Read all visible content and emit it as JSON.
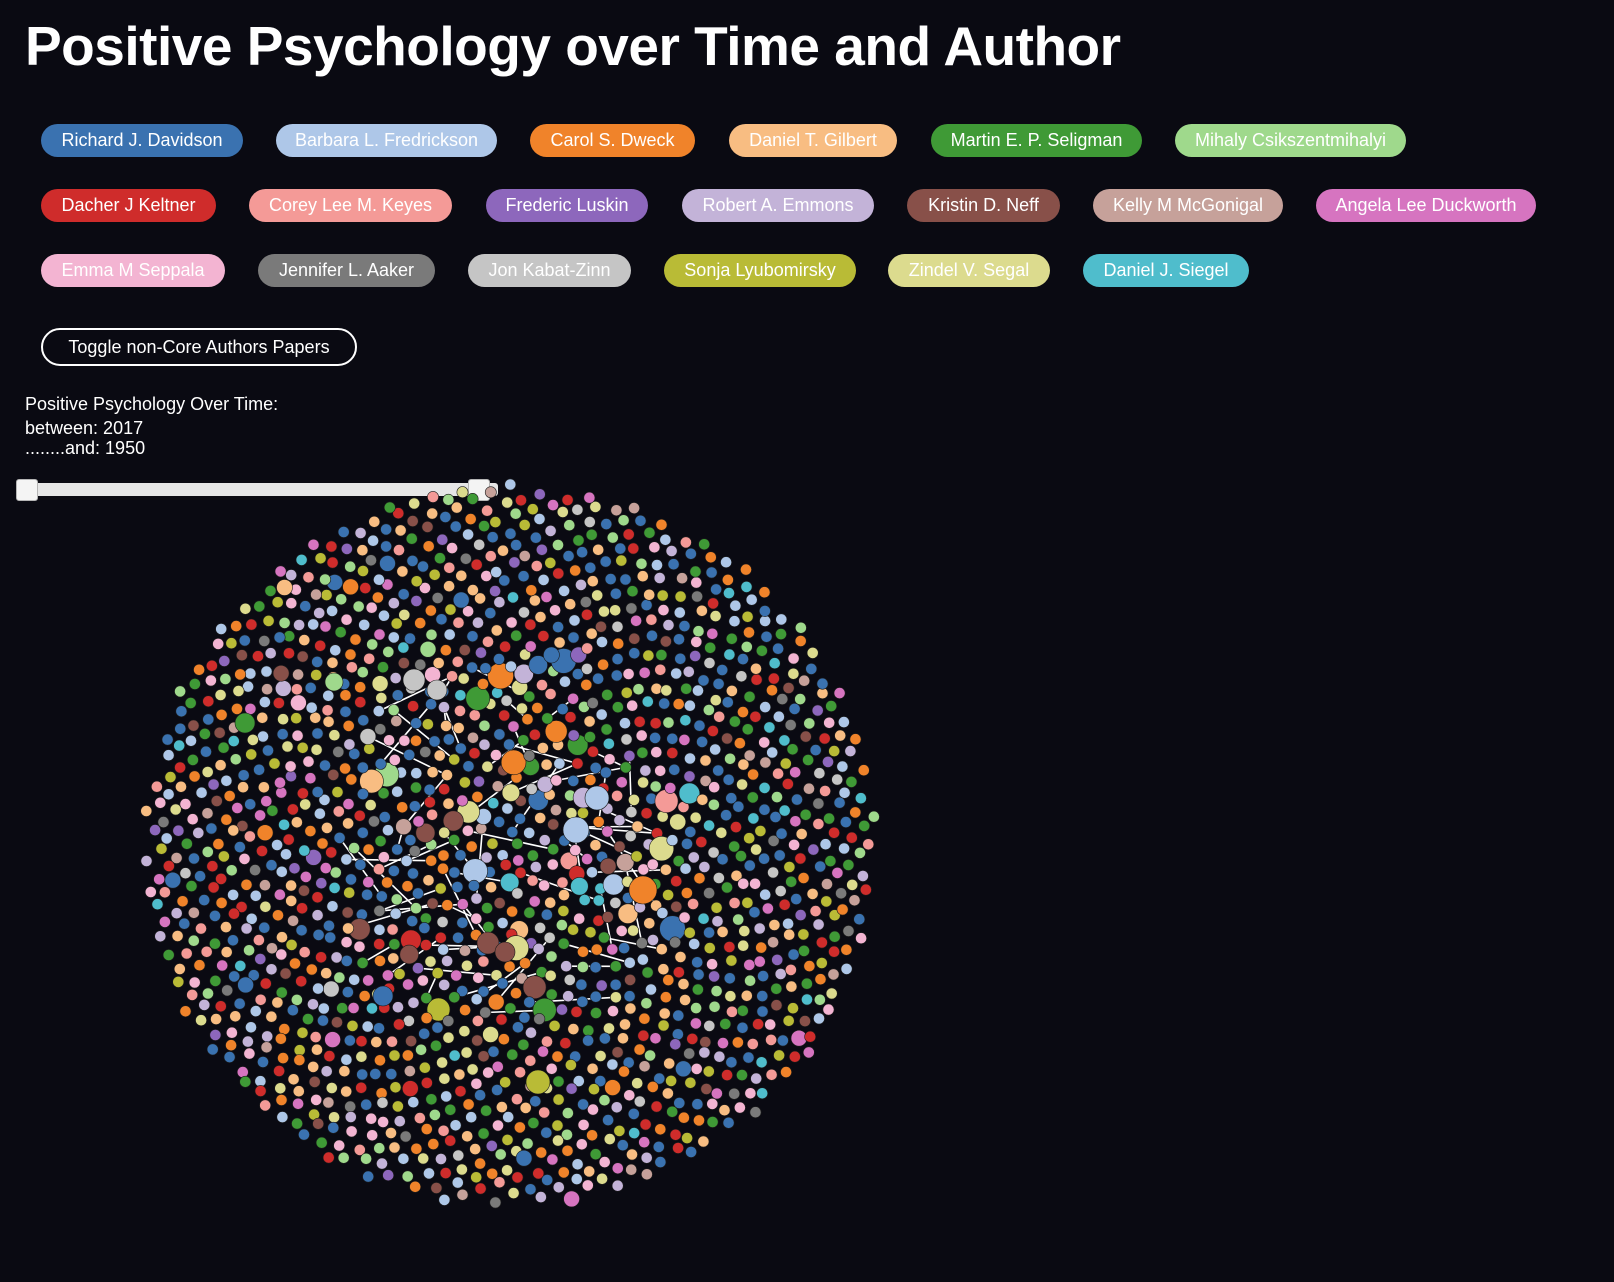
{
  "title": "Positive Psychology over Time and Author",
  "authors": [
    {
      "label": "Richard J. Davidson",
      "color": "#3a72b0"
    },
    {
      "label": "Barbara L. Fredrickson",
      "color": "#aec7e8"
    },
    {
      "label": "Carol S. Dweck",
      "color": "#f0832a"
    },
    {
      "label": "Daniel T. Gilbert",
      "color": "#f8bd82"
    },
    {
      "label": "Martin E. P. Seligman",
      "color": "#3f9a36"
    },
    {
      "label": "Mihaly Csikszentmihalyi",
      "color": "#9fd98c"
    },
    {
      "label": "Dacher J Keltner",
      "color": "#cf2c2b"
    },
    {
      "label": "Corey Lee M. Keyes",
      "color": "#f49a97"
    },
    {
      "label": "Frederic Luskin",
      "color": "#8d67bc"
    },
    {
      "label": "Robert A. Emmons",
      "color": "#c3b3d8"
    },
    {
      "label": "Kristin D. Neff",
      "color": "#885049"
    },
    {
      "label": "Kelly M McGonigal",
      "color": "#c6a19a"
    },
    {
      "label": "Angela Lee Duckworth",
      "color": "#d674c0"
    },
    {
      "label": "Emma M Seppala",
      "color": "#f3b4d2"
    },
    {
      "label": "Jennifer L. Aaker",
      "color": "#7a7a7a"
    },
    {
      "label": "Jon Kabat-Zinn",
      "color": "#c5c5c5"
    },
    {
      "label": "Sonja Lyubomirsky",
      "color": "#b9bb36"
    },
    {
      "label": "Zindel V. Segal",
      "color": "#dcdb8e"
    },
    {
      "label": "Daniel J. Siegel",
      "color": "#4fbdcc"
    }
  ],
  "toggle_label": "Toggle non-Core Authors Papers",
  "time": {
    "heading": "Positive Psychology Over Time:",
    "between": "between: 2017",
    "and": "........and: 1950"
  },
  "colors": {
    "background": "#0a0a12",
    "link": "#ffffff"
  }
}
